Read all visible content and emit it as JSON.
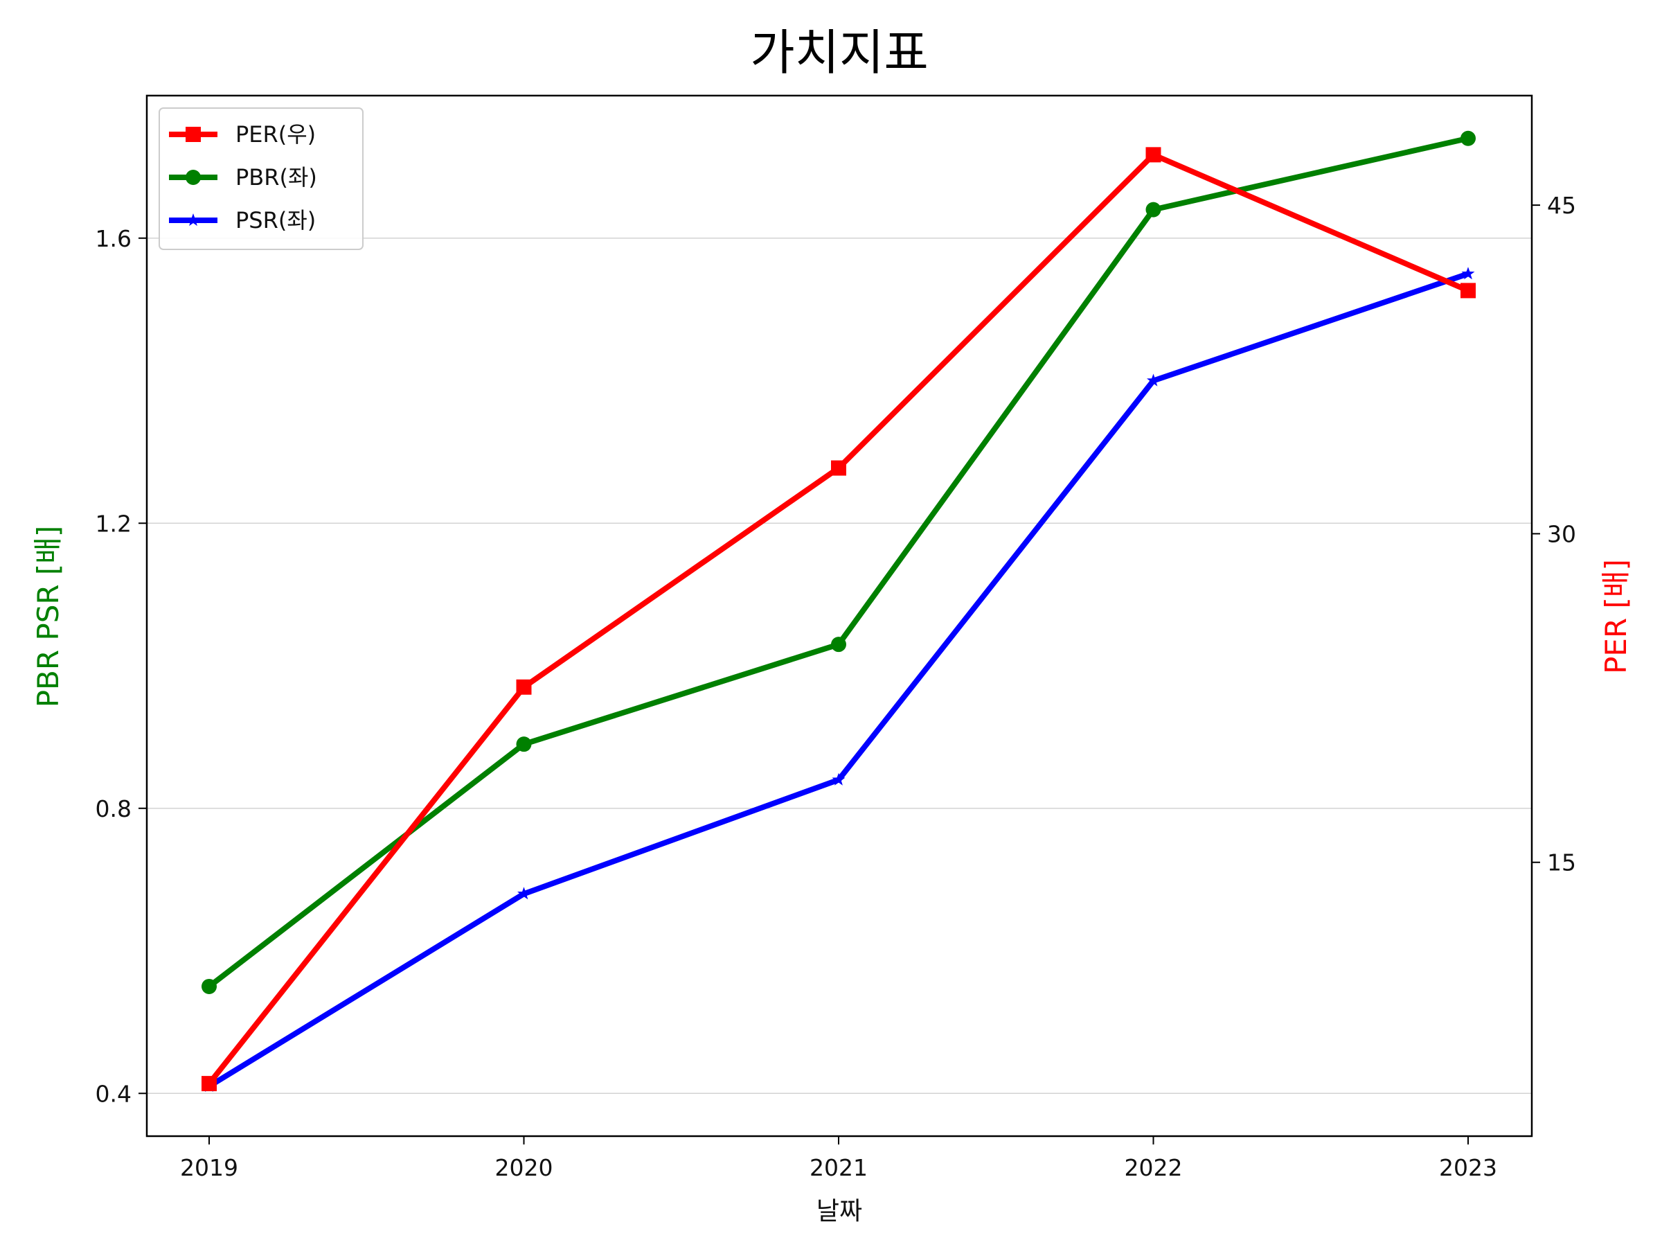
{
  "chart_data": {
    "type": "line",
    "title": "가치지표",
    "xlabel": "날짜",
    "ylabel_left": "PBR PSR [배]",
    "ylabel_right": "PER [배]",
    "categories": [
      "2019",
      "2020",
      "2021",
      "2022",
      "2023"
    ],
    "left_axis": {
      "ylim": [
        0.34,
        1.8
      ],
      "ticks": [
        0.4,
        0.8,
        1.2,
        1.6
      ],
      "tick_labels": [
        "0.4",
        "0.8",
        "1.2",
        "1.6"
      ]
    },
    "right_axis": {
      "ylim": [
        2.5,
        50.0
      ],
      "ticks": [
        15,
        30,
        45
      ],
      "tick_labels": [
        "15",
        "30",
        "45"
      ]
    },
    "grid": "horizontal (left axis ticks)",
    "legend_placement": "top-left",
    "series": [
      {
        "name": "PER(우)",
        "axis": "right",
        "color": "#ff0000",
        "marker": "square",
        "values": [
          4.9,
          23.0,
          33.0,
          47.3,
          41.1
        ]
      },
      {
        "name": "PBR(좌)",
        "axis": "left",
        "color": "#008000",
        "marker": "circle",
        "values": [
          0.55,
          0.89,
          1.03,
          1.64,
          1.74
        ]
      },
      {
        "name": "PSR(좌)",
        "axis": "left",
        "color": "#0000ff",
        "marker": "star",
        "values": [
          0.41,
          0.68,
          0.84,
          1.4,
          1.55
        ]
      }
    ],
    "colors": {
      "left_label": "#008000",
      "right_label": "#ff0000"
    }
  }
}
